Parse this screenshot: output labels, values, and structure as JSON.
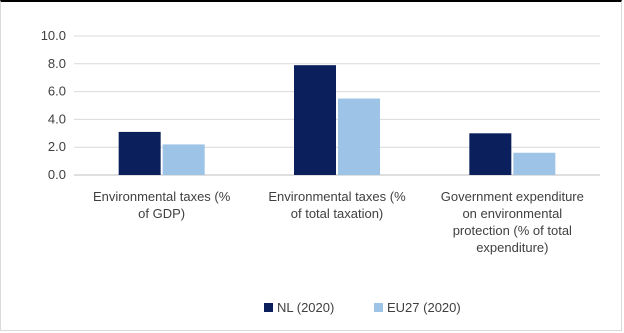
{
  "chart_data": {
    "type": "bar",
    "categories": [
      [
        "Environmental taxes (%",
        "of GDP)"
      ],
      [
        "Environmental taxes (%",
        "of total taxation)"
      ],
      [
        "Government expenditure",
        "on environmental",
        "protection (% of total",
        "expenditure)"
      ]
    ],
    "series": [
      {
        "name": "NL (2020)",
        "values": [
          3.1,
          7.9,
          3.0
        ],
        "color": "#0b1f5c"
      },
      {
        "name": "EU27 (2020)",
        "values": [
          2.2,
          5.5,
          1.6
        ],
        "color": "#9dc3e6"
      }
    ],
    "yticks": [
      "0.0",
      "2.0",
      "4.0",
      "6.0",
      "8.0",
      "10.0"
    ],
    "ylim": [
      0,
      10
    ],
    "grid": true,
    "legend_position": "bottom"
  }
}
